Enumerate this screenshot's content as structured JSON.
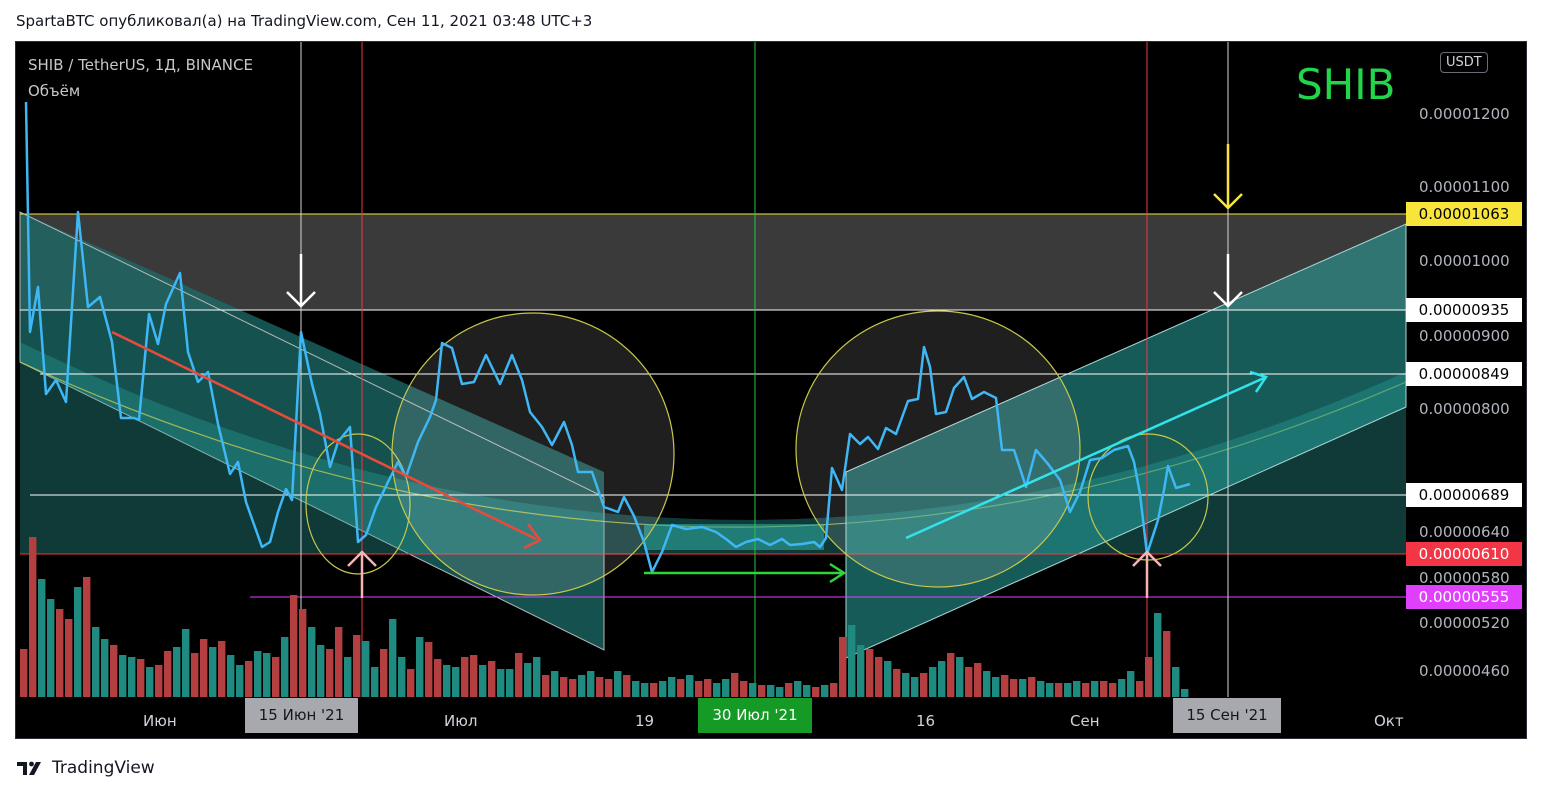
{
  "header": {
    "publish_line": "SpartaBTC опубликовал(а) на TradingView.com, Сен 11, 2021 03:48 UTC+3"
  },
  "chart": {
    "symbol_line": "SHIB / TetherUS, 1Д, BINANCE",
    "volume_label": "Объём",
    "watermark": "SHIB",
    "currency": "USDT",
    "price_scale": [
      "0.00001200",
      "0.00001100",
      "0.00001000",
      "0.00000900",
      "0.00000800",
      "0.00000640",
      "0.00000580",
      "0.00000520",
      "0.00000460"
    ],
    "price_tags": [
      {
        "value": "0.00001063",
        "bg": "#f7e53b",
        "fg": "#000000"
      },
      {
        "value": "0.00000935",
        "bg": "#ffffff",
        "fg": "#000000"
      },
      {
        "value": "0.00000849",
        "bg": "#ffffff",
        "fg": "#000000"
      },
      {
        "value": "0.00000689",
        "bg": "#ffffff",
        "fg": "#000000"
      },
      {
        "value": "0.00000610",
        "bg": "#f23645",
        "fg": "#ffffff"
      },
      {
        "value": "0.00000555",
        "bg": "#e040fb",
        "fg": "#ffffff"
      }
    ],
    "time_scale": [
      "Июн",
      "Июл",
      "19",
      "16",
      "Сен",
      "Окт"
    ],
    "time_tags": [
      {
        "value": "15 Июн '21",
        "bg": "#a7a9ae",
        "fg": "#131722"
      },
      {
        "value": "30 Июл '21",
        "bg": "#159a25",
        "fg": "#ffffff"
      },
      {
        "value": "15 Сен '21",
        "bg": "#a7a9ae",
        "fg": "#131722"
      }
    ],
    "colors": {
      "price_line": "#3fb7f5",
      "channel_fill": "#2aa6a0",
      "volume_up": "#1e8a80",
      "volume_down": "#b33f41",
      "circle": "#c9c84a"
    }
  },
  "footer": {
    "brand": "TradingView"
  }
}
